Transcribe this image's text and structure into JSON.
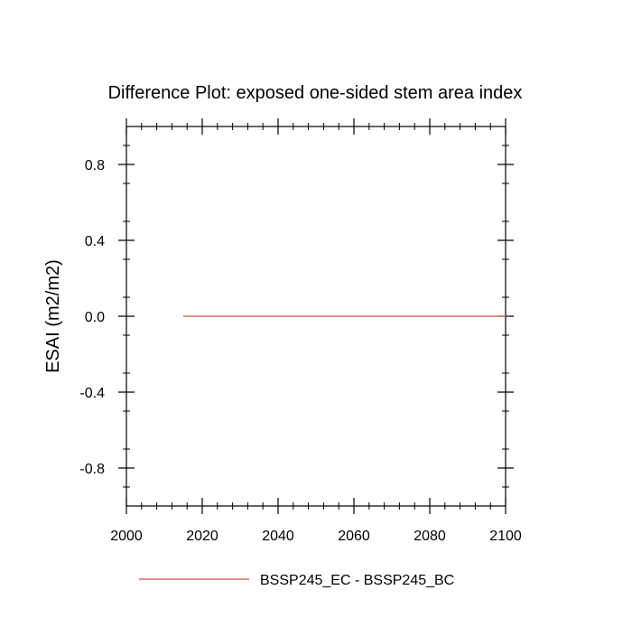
{
  "chart_data": {
    "type": "line",
    "title": "Difference Plot: exposed one-sided stem area index",
    "xlabel": "",
    "ylabel": "ESAI  (m2/m2)",
    "xlim": [
      2000,
      2100
    ],
    "ylim": [
      -1.0,
      1.0
    ],
    "x_ticks": [
      2000,
      2020,
      2040,
      2060,
      2080,
      2100
    ],
    "x_tick_labels": [
      "2000",
      "2020",
      "2040",
      "2060",
      "2080",
      "2100"
    ],
    "y_ticks": [
      0.8,
      0.4,
      0.0,
      -0.4,
      -0.8
    ],
    "y_tick_labels": [
      "0.8",
      "0.4",
      "0.0",
      "-0.4",
      "-0.8"
    ],
    "grid": false,
    "legend_position": "bottom",
    "series": [
      {
        "name": "BSSP245_EC - BSSP245_BC",
        "color": "#e06666",
        "x": [
          2015,
          2100
        ],
        "y": [
          0.0,
          0.0
        ]
      }
    ]
  }
}
